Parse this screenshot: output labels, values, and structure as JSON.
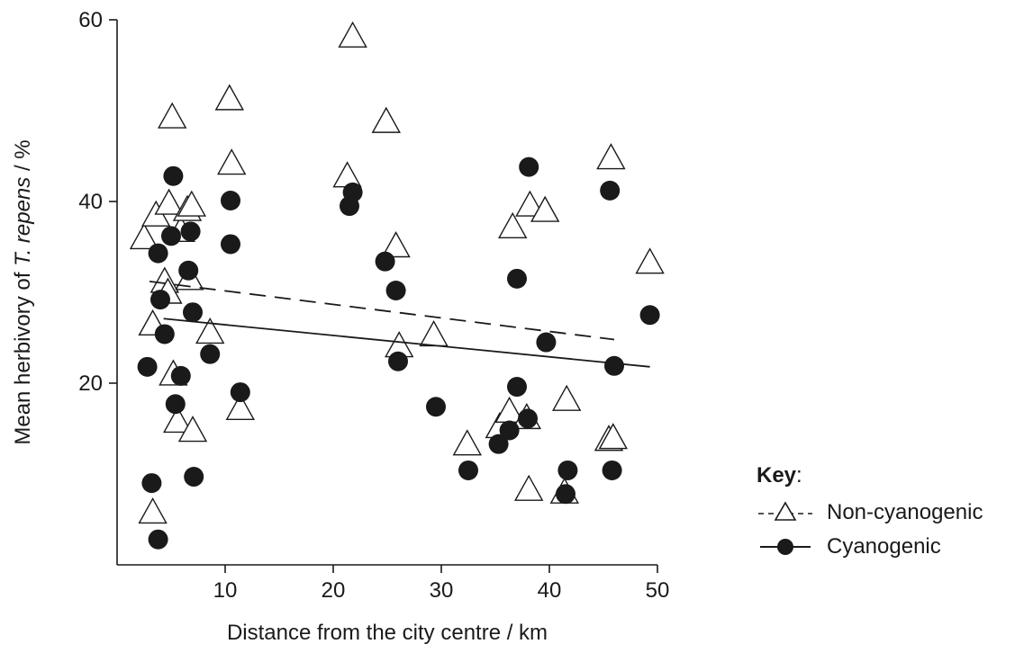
{
  "chart_data": {
    "type": "scatter",
    "xlabel": "Distance from the city centre / km",
    "ylabel_prefix": "Mean herbivory of ",
    "ylabel_italic": "T. repens",
    "ylabel_suffix": " / %",
    "xlim": [
      0,
      50
    ],
    "ylim": [
      0,
      60
    ],
    "x_ticks": [
      10,
      20,
      30,
      40,
      50
    ],
    "y_ticks": [
      20,
      40,
      60
    ],
    "grid": false,
    "legend_position": "right",
    "legend_title": "Key",
    "legend_title_suffix": ":",
    "series": [
      {
        "name": "Non-cyanogenic",
        "marker": "triangle-open",
        "line_style": "dashed",
        "trend": {
          "x": [
            3.0,
            46.0
          ],
          "y": [
            31.2,
            24.8
          ]
        },
        "points": [
          [
            2.5,
            36
          ],
          [
            3.3,
            26.5
          ],
          [
            3.3,
            5.8
          ],
          [
            3.6,
            38.5
          ],
          [
            4.4,
            31.2
          ],
          [
            4.7,
            30
          ],
          [
            4.8,
            39.8
          ],
          [
            5.1,
            49.3
          ],
          [
            5.2,
            21
          ],
          [
            5.6,
            15.8
          ],
          [
            5.9,
            36.8
          ],
          [
            6.5,
            39.1
          ],
          [
            6.7,
            31.5
          ],
          [
            6.9,
            39.6
          ],
          [
            7.0,
            14.8
          ],
          [
            8.6,
            25.6
          ],
          [
            10.4,
            51.3
          ],
          [
            10.6,
            44.2
          ],
          [
            11.4,
            17.2
          ],
          [
            21.3,
            42.8
          ],
          [
            21.8,
            58.2
          ],
          [
            24.9,
            48.8
          ],
          [
            25.8,
            35.1
          ],
          [
            26.1,
            24.1
          ],
          [
            29.3,
            25.3
          ],
          [
            32.4,
            13.3
          ],
          [
            35.4,
            15.2
          ],
          [
            36.3,
            16.9
          ],
          [
            36.6,
            37.2
          ],
          [
            37.9,
            16.2
          ],
          [
            38.1,
            8.3
          ],
          [
            38.2,
            39.6
          ],
          [
            39.6,
            39
          ],
          [
            41.4,
            8
          ],
          [
            41.6,
            18.2
          ],
          [
            45.5,
            13.8
          ],
          [
            45.7,
            44.8
          ],
          [
            45.9,
            14
          ],
          [
            49.3,
            33.3
          ]
        ]
      },
      {
        "name": "Cyanogenic",
        "marker": "circle-filled",
        "line_style": "solid",
        "trend": {
          "x": [
            4.3,
            49.3
          ],
          "y": [
            27.1,
            21.8
          ]
        },
        "points": [
          [
            2.8,
            21.8
          ],
          [
            3.2,
            9
          ],
          [
            3.8,
            34.3
          ],
          [
            3.8,
            2.8
          ],
          [
            4.0,
            29.2
          ],
          [
            4.4,
            25.4
          ],
          [
            5.0,
            36.2
          ],
          [
            5.2,
            42.8
          ],
          [
            5.4,
            17.7
          ],
          [
            5.9,
            20.8
          ],
          [
            6.6,
            32.4
          ],
          [
            6.8,
            36.7
          ],
          [
            7.0,
            27.8
          ],
          [
            7.1,
            9.7
          ],
          [
            8.6,
            23.2
          ],
          [
            10.5,
            40.1
          ],
          [
            10.5,
            35.3
          ],
          [
            11.4,
            19
          ],
          [
            21.5,
            39.5
          ],
          [
            21.8,
            41
          ],
          [
            24.8,
            33.4
          ],
          [
            25.8,
            30.2
          ],
          [
            26.0,
            22.4
          ],
          [
            29.5,
            17.4
          ],
          [
            32.5,
            10.4
          ],
          [
            35.3,
            13.3
          ],
          [
            36.3,
            14.8
          ],
          [
            37.0,
            31.5
          ],
          [
            37.0,
            19.6
          ],
          [
            38.0,
            16.1
          ],
          [
            38.1,
            43.8
          ],
          [
            39.7,
            24.5
          ],
          [
            41.5,
            7.8
          ],
          [
            41.7,
            10.4
          ],
          [
            45.6,
            41.2
          ],
          [
            45.8,
            10.4
          ],
          [
            46.0,
            21.9
          ],
          [
            49.3,
            27.5
          ]
        ]
      }
    ]
  }
}
